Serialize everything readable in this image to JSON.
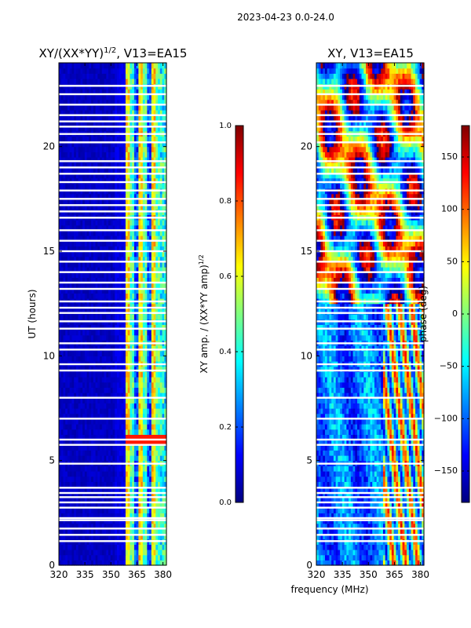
{
  "page": {
    "suptitle": "2023-04-23 0.0-24.0"
  },
  "colors": {
    "jet": [
      "#00007f",
      "#0000ff",
      "#007fff",
      "#00ffff",
      "#7fff7f",
      "#ffff00",
      "#ff7f00",
      "#ff0000",
      "#7f0000"
    ],
    "gap": "#ffffff",
    "axis": "#000000"
  },
  "chart_data": [
    {
      "type": "heatmap",
      "title_main": "XY/(XX*YY)",
      "title_sup": "1/2",
      "title_rest": ", V13=EA15",
      "xlabel": "",
      "ylabel": "UT (hours)",
      "xlim": [
        320,
        382
      ],
      "ylim": [
        0,
        24
      ],
      "xticks": [
        "320",
        "335",
        "350",
        "365",
        "380"
      ],
      "xtick_values": [
        320,
        335,
        350,
        365,
        380
      ],
      "yticks": [
        "0",
        "5",
        "10",
        "15",
        "20"
      ],
      "ytick_values": [
        0,
        5,
        10,
        15,
        20
      ],
      "value_desc": "normalized XY amplitude, low (~0.05) below 359 MHz, high (0.3-0.9) in channel stripes 359-378 MHz",
      "colorbar": {
        "label_main": "XY amp. / (XX*YY amp)",
        "label_sup": "1/2",
        "vmin": 0.0,
        "vmax": 1.0,
        "ticks": [
          "0.0",
          "0.2",
          "0.4",
          "0.6",
          "0.8",
          "1.0"
        ],
        "tick_values": [
          0.0,
          0.2,
          0.4,
          0.6,
          0.8,
          1.0
        ]
      }
    },
    {
      "type": "heatmap",
      "title": "XY, V13=EA15",
      "xlabel": "frequency (MHz)",
      "ylabel": "",
      "xlim": [
        320,
        382
      ],
      "ylim": [
        0,
        24
      ],
      "xticks": [
        "320",
        "335",
        "350",
        "365",
        "380"
      ],
      "xtick_values": [
        320,
        335,
        350,
        365,
        380
      ],
      "yticks": [
        "0",
        "5",
        "10",
        "15",
        "20"
      ],
      "ytick_values": [
        0,
        5,
        10,
        15,
        20
      ],
      "value_desc": "XY phase in degrees, -180 to 180, wrapping phase structure",
      "colorbar": {
        "label": "phase (deg)",
        "vmin": -180,
        "vmax": 180,
        "ticks": [
          "−150",
          "−100",
          "−50",
          "0",
          "50",
          "100",
          "150"
        ],
        "tick_values": [
          -150,
          -100,
          -50,
          0,
          50,
          100,
          150
        ]
      }
    }
  ],
  "flagged_hours": [
    1.15,
    1.45,
    1.75,
    2.15,
    2.25,
    2.75,
    3.0,
    3.25,
    3.45,
    3.7,
    4.85,
    5.75,
    6.0,
    7.0,
    8.0,
    9.3,
    9.6,
    10.3,
    10.6,
    11.3,
    11.65,
    12.05,
    12.3,
    12.6,
    13.2,
    13.5,
    14.0,
    14.5,
    15.0,
    15.5,
    16.0,
    16.6,
    16.9,
    17.2,
    17.5,
    17.9,
    18.3,
    18.7,
    19.0,
    19.3,
    20.2,
    20.6,
    20.95,
    21.2,
    21.5,
    22.0,
    22.5,
    22.9
  ]
}
